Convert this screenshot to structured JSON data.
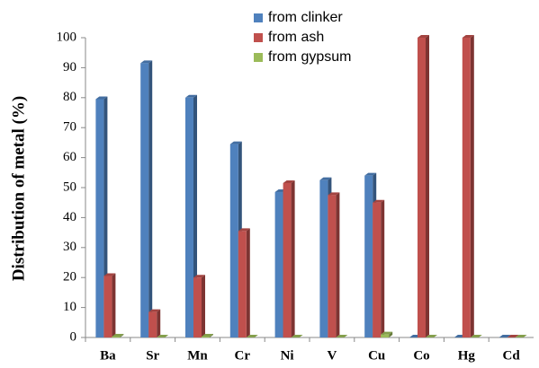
{
  "chart_data": {
    "type": "bar",
    "y_label": "Distribution of metal  (%)",
    "categories": [
      "Ba",
      "Sr",
      "Mn",
      "Cr",
      "Ni",
      "V",
      "Cu",
      "Co",
      "Hg",
      "Cd"
    ],
    "series": [
      {
        "name": "from clinker",
        "color": "#4f81bd",
        "values": [
          79.5,
          91.5,
          80,
          64.5,
          48.5,
          52.5,
          54,
          0,
          0,
          0
        ]
      },
      {
        "name": "from ash",
        "color": "#c0504d",
        "values": [
          20.5,
          8.5,
          20,
          35.5,
          51.5,
          47.5,
          45,
          100,
          100,
          0
        ]
      },
      {
        "name": "from gypsum",
        "color": "#9bbb59",
        "values": [
          0.3,
          0,
          0.3,
          0,
          0,
          0,
          1,
          0,
          0,
          0
        ]
      }
    ],
    "ylim": [
      0,
      100
    ],
    "yticks": [
      0,
      10,
      20,
      30,
      40,
      50,
      60,
      70,
      80,
      90,
      100
    ],
    "legend": "top"
  }
}
